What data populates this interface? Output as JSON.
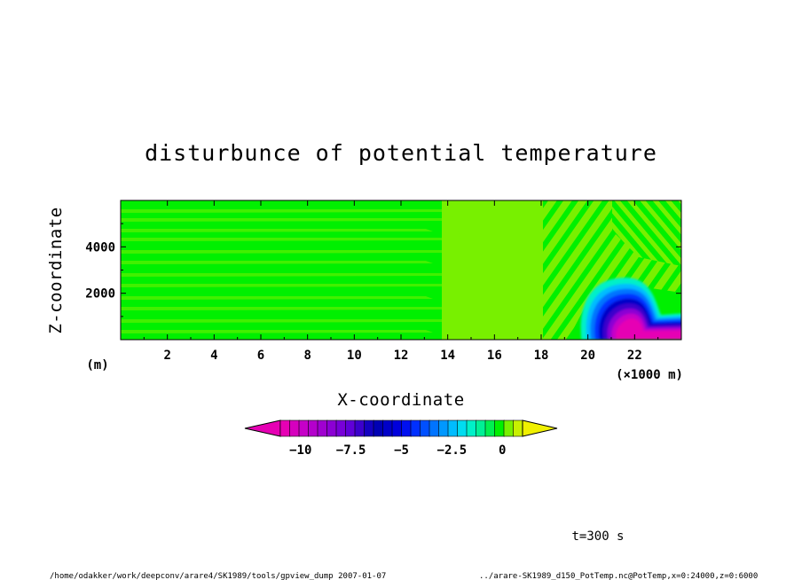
{
  "figure": {
    "title": "disturbunce of potential temperature",
    "time_label": "t=300 s",
    "footer_left": "/home/odakker/work/deepconv/arare4/SK1989/tools/gpview_dump   2007-01-07",
    "footer_right": "../arare-SK1989_d150_PotTemp.nc@PotTemp,x=0:24000,z=0:6000"
  },
  "chart_data": {
    "type": "heatmap",
    "title": "disturbunce of potential temperature",
    "xlabel": "X-coordinate",
    "ylabel": "Z-coordinate",
    "x_unit": "(×1000 m)",
    "y_unit": "(m)",
    "xlim": [
      0,
      24
    ],
    "ylim": [
      0,
      6000
    ],
    "x_ticks": [
      2,
      4,
      6,
      8,
      10,
      12,
      14,
      16,
      18,
      20,
      22
    ],
    "y_ticks": [
      2000,
      4000
    ],
    "colorbar": {
      "range": [
        -11,
        1
      ],
      "step": 0.5,
      "ticks": [
        -10,
        -7.5,
        -5,
        -2.5,
        0
      ],
      "tick_labels": [
        "−10",
        "−7.5",
        "−5",
        "−2.5",
        "0"
      ],
      "colors": [
        "#e600b4",
        "#d600be",
        "#c600c8",
        "#b400cc",
        "#a000d0",
        "#8c00d4",
        "#7800d8",
        "#6000d8",
        "#3c00cc",
        "#1400c0",
        "#0000b4",
        "#0000c8",
        "#0000dc",
        "#0010f0",
        "#0030ff",
        "#0050ff",
        "#0074ff",
        "#0098ff",
        "#00bcff",
        "#00dcf0",
        "#00f0c8",
        "#00f096",
        "#00f050",
        "#00f000",
        "#78f000",
        "#c8f000"
      ],
      "over_color": "#f0f000"
    },
    "features": [
      {
        "name": "cold pool",
        "x_range": [
          20.3,
          24
        ],
        "z_range": [
          0,
          2300
        ],
        "min_value": -10
      }
    ]
  }
}
